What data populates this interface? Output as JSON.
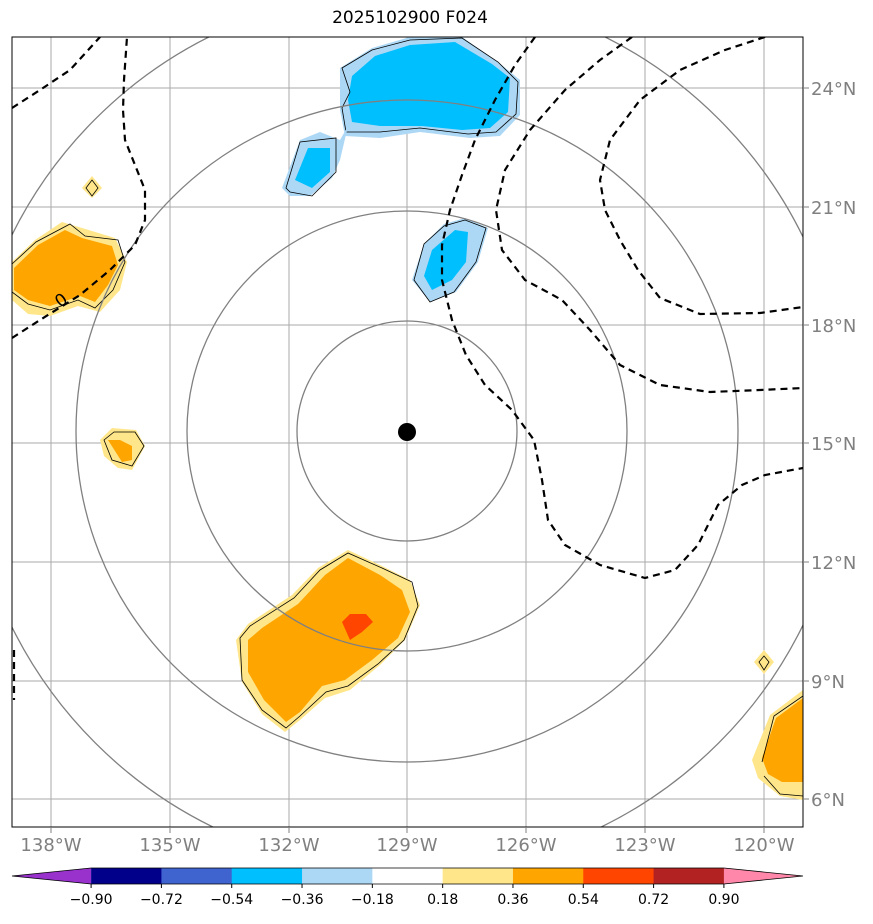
{
  "title": "2025102900 F024",
  "center_marker": {
    "lon": -129.0,
    "lat": 15.25
  },
  "lon_ticks": [
    "138°W",
    "135°W",
    "132°W",
    "129°W",
    "126°W",
    "123°W",
    "120°W"
  ],
  "lat_ticks": [
    "24°N",
    "21°N",
    "18°N",
    "15°N",
    "12°N",
    "9°N",
    "6°N"
  ],
  "contour_label": "0",
  "colorbar": {
    "colors": [
      "#9932cc",
      "#00008b",
      "#3f63cf",
      "#00bfff",
      "#add8f5",
      "#ffffff",
      "#ffe68a",
      "#ffa500",
      "#ff4500",
      "#b22222",
      "#ff88aa"
    ],
    "labels": [
      "−0.90",
      "−0.72",
      "−0.54",
      "−0.36",
      "−0.18",
      "0.18",
      "0.36",
      "0.54",
      "0.72",
      "0.90"
    ]
  },
  "colors": {
    "positive_light": "#ffe68a",
    "positive_mid": "#ffa500",
    "positive_strong": "#ff4500",
    "negative_light": "#add8f5",
    "negative_mid": "#00bfff",
    "grid": "#aaaaaa",
    "range_rings": "#808080"
  }
}
